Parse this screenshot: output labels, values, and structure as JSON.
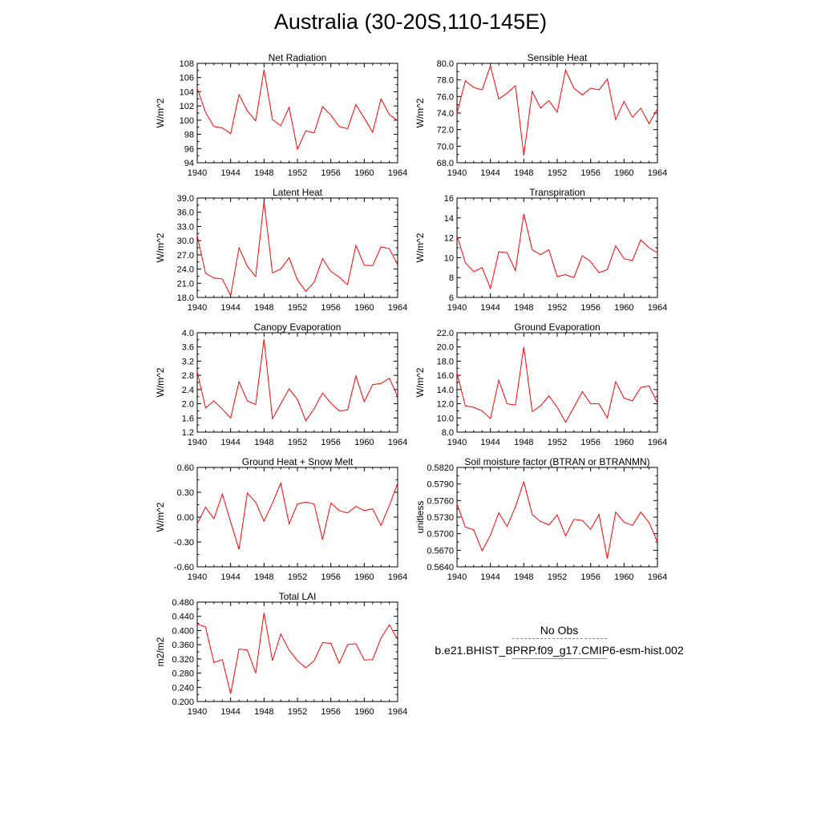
{
  "title": "Australia (30-20S,110-145E)",
  "legend": {
    "obs_label": "No Obs",
    "model_label": "b.e21.BHIST_BPRP.f09_g17.CMIP6-esm-hist.002",
    "obs_color": "#888888",
    "model_color": "#ff0000"
  },
  "chart_data": [
    {
      "type": "line",
      "title": "Net Radiation",
      "ylabel": "W/m^2",
      "xlim": [
        1940,
        1964
      ],
      "ylim": [
        94,
        108
      ],
      "xticks": [
        "1940",
        "1944",
        "1948",
        "1952",
        "1956",
        "1960",
        "1964"
      ],
      "yticks": [
        "94",
        "96",
        "98",
        "100",
        "102",
        "104",
        "106",
        "108"
      ],
      "grid": false,
      "color": "#ff0000",
      "x": [
        1940,
        1941,
        1942,
        1943,
        1944,
        1945,
        1946,
        1947,
        1948,
        1949,
        1950,
        1951,
        1952,
        1953,
        1954,
        1955,
        1956,
        1957,
        1958,
        1959,
        1960,
        1961,
        1962,
        1963,
        1964
      ],
      "y": [
        104.5,
        101.1,
        99.1,
        98.9,
        98.1,
        103.6,
        101.3,
        99.9,
        107.1,
        100.1,
        99.2,
        101.8,
        95.9,
        98.5,
        98.2,
        101.9,
        100.7,
        99.1,
        98.8,
        102.2,
        100.3,
        98.3,
        103.0,
        100.8,
        99.9
      ]
    },
    {
      "type": "line",
      "title": "Sensible Heat",
      "ylabel": "W/m^2",
      "xlim": [
        1940,
        1964
      ],
      "ylim": [
        68,
        80
      ],
      "xticks": [
        "1940",
        "1944",
        "1948",
        "1952",
        "1956",
        "1960",
        "1964"
      ],
      "yticks": [
        "68.0",
        "70.0",
        "72.0",
        "74.0",
        "76.0",
        "78.0",
        "80.0"
      ],
      "grid": false,
      "color": "#ff0000",
      "x": [
        1940,
        1941,
        1942,
        1943,
        1944,
        1945,
        1946,
        1947,
        1948,
        1949,
        1950,
        1951,
        1952,
        1953,
        1954,
        1955,
        1956,
        1957,
        1958,
        1959,
        1960,
        1961,
        1962,
        1963,
        1964
      ],
      "y": [
        74.0,
        77.9,
        77.1,
        76.8,
        79.7,
        75.7,
        76.4,
        77.3,
        68.9,
        76.6,
        74.6,
        75.5,
        74.1,
        79.2,
        77.0,
        76.2,
        77.0,
        76.8,
        78.1,
        73.2,
        75.4,
        73.5,
        74.6,
        72.7,
        74.5
      ]
    },
    {
      "type": "line",
      "title": "Latent Heat",
      "ylabel": "W/m^2",
      "xlim": [
        1940,
        1964
      ],
      "ylim": [
        18,
        39
      ],
      "xticks": [
        "1940",
        "1944",
        "1948",
        "1952",
        "1956",
        "1960",
        "1964"
      ],
      "yticks": [
        "18.0",
        "21.0",
        "24.0",
        "27.0",
        "30.0",
        "33.0",
        "36.0",
        "39.0"
      ],
      "grid": false,
      "color": "#ff0000",
      "x": [
        1940,
        1941,
        1942,
        1943,
        1944,
        1945,
        1946,
        1947,
        1948,
        1949,
        1950,
        1951,
        1952,
        1953,
        1954,
        1955,
        1956,
        1957,
        1958,
        1959,
        1960,
        1961,
        1962,
        1963,
        1964
      ],
      "y": [
        31.0,
        23.1,
        22.1,
        21.9,
        18.4,
        28.5,
        24.6,
        22.4,
        38.3,
        23.2,
        24.0,
        26.4,
        21.7,
        19.3,
        21.2,
        26.2,
        23.5,
        22.3,
        20.7,
        29.0,
        24.8,
        24.7,
        28.7,
        28.3,
        24.9
      ]
    },
    {
      "type": "line",
      "title": "Transpiration",
      "ylabel": "W/m^2",
      "xlim": [
        1940,
        1964
      ],
      "ylim": [
        6,
        16
      ],
      "xticks": [
        "1940",
        "1944",
        "1948",
        "1952",
        "1956",
        "1960",
        "1964"
      ],
      "yticks": [
        "6",
        "8",
        "10",
        "12",
        "14",
        "16"
      ],
      "grid": false,
      "color": "#ff0000",
      "x": [
        1940,
        1941,
        1942,
        1943,
        1944,
        1945,
        1946,
        1947,
        1948,
        1949,
        1950,
        1951,
        1952,
        1953,
        1954,
        1955,
        1956,
        1957,
        1958,
        1959,
        1960,
        1961,
        1962,
        1963,
        1964
      ],
      "y": [
        12.2,
        9.5,
        8.6,
        9.0,
        6.9,
        10.6,
        10.5,
        8.7,
        14.4,
        10.8,
        10.3,
        10.8,
        8.1,
        8.3,
        8.0,
        10.2,
        9.6,
        8.5,
        8.8,
        11.2,
        9.9,
        9.7,
        11.8,
        11.0,
        10.5
      ]
    },
    {
      "type": "line",
      "title": "Canopy Evaporation",
      "ylabel": "W/m^2",
      "xlim": [
        1940,
        1964
      ],
      "ylim": [
        1.2,
        4.0
      ],
      "xticks": [
        "1940",
        "1944",
        "1948",
        "1952",
        "1956",
        "1960",
        "1964"
      ],
      "yticks": [
        "1.2",
        "1.6",
        "2.0",
        "2.4",
        "2.8",
        "3.2",
        "3.6",
        "4.0"
      ],
      "grid": false,
      "color": "#ff0000",
      "x": [
        1940,
        1941,
        1942,
        1943,
        1944,
        1945,
        1946,
        1947,
        1948,
        1949,
        1950,
        1951,
        1952,
        1953,
        1954,
        1955,
        1956,
        1957,
        1958,
        1959,
        1960,
        1961,
        1962,
        1963,
        1964
      ],
      "y": [
        2.9,
        1.88,
        2.08,
        1.85,
        1.6,
        2.62,
        2.08,
        1.98,
        3.82,
        1.58,
        2.0,
        2.42,
        2.12,
        1.52,
        1.86,
        2.3,
        2.02,
        1.8,
        1.82,
        2.78,
        2.06,
        2.54,
        2.57,
        2.72,
        2.2
      ]
    },
    {
      "type": "line",
      "title": "Ground Evaporation",
      "ylabel": "W/m^2",
      "xlim": [
        1940,
        1964
      ],
      "ylim": [
        8,
        22
      ],
      "xticks": [
        "1940",
        "1944",
        "1948",
        "1952",
        "1956",
        "1960",
        "1964"
      ],
      "yticks": [
        "8.0",
        "10.0",
        "12.0",
        "14.0",
        "16.0",
        "18.0",
        "20.0",
        "22.0"
      ],
      "grid": false,
      "color": "#ff0000",
      "x": [
        1940,
        1941,
        1942,
        1943,
        1944,
        1945,
        1946,
        1947,
        1948,
        1949,
        1950,
        1951,
        1952,
        1953,
        1954,
        1955,
        1956,
        1957,
        1958,
        1959,
        1960,
        1961,
        1962,
        1963,
        1964
      ],
      "y": [
        16.3,
        11.7,
        11.5,
        11.0,
        9.9,
        15.3,
        12.0,
        11.8,
        20.0,
        10.9,
        11.7,
        13.1,
        11.5,
        9.4,
        11.5,
        13.7,
        12.0,
        12.0,
        10.0,
        15.1,
        12.8,
        12.4,
        14.3,
        14.5,
        12.1
      ]
    },
    {
      "type": "line",
      "title": "Ground Heat + Snow Melt",
      "ylabel": "W/m^2",
      "xlim": [
        1940,
        1964
      ],
      "ylim": [
        -0.6,
        0.6
      ],
      "xticks": [
        "1940",
        "1944",
        "1948",
        "1952",
        "1956",
        "1960",
        "1964"
      ],
      "yticks": [
        "-0.60",
        "-0.30",
        "0.00",
        "0.30",
        "0.60"
      ],
      "grid": false,
      "color": "#ff0000",
      "x": [
        1940,
        1941,
        1942,
        1943,
        1944,
        1945,
        1946,
        1947,
        1948,
        1949,
        1950,
        1951,
        1952,
        1953,
        1954,
        1955,
        1956,
        1957,
        1958,
        1959,
        1960,
        1961,
        1962,
        1963,
        1964
      ],
      "y": [
        -0.08,
        0.12,
        -0.02,
        0.28,
        -0.06,
        -0.39,
        0.29,
        0.18,
        -0.05,
        0.17,
        0.41,
        -0.08,
        0.16,
        0.18,
        0.16,
        -0.27,
        0.17,
        0.08,
        0.05,
        0.13,
        0.08,
        0.1,
        -0.1,
        0.14,
        0.41
      ]
    },
    {
      "type": "line",
      "title": "Soil moisture factor (BTRAN or BTRANMN)",
      "ylabel": "unitless",
      "xlim": [
        1940,
        1964
      ],
      "ylim": [
        0.564,
        0.582
      ],
      "xticks": [
        "1940",
        "1944",
        "1948",
        "1952",
        "1956",
        "1960",
        "1964"
      ],
      "yticks": [
        "0.5640",
        "0.5670",
        "0.5700",
        "0.5730",
        "0.5760",
        "0.5790",
        "0.5820"
      ],
      "grid": false,
      "color": "#ff0000",
      "x": [
        1940,
        1941,
        1942,
        1943,
        1944,
        1945,
        1946,
        1947,
        1948,
        1949,
        1950,
        1951,
        1952,
        1953,
        1954,
        1955,
        1956,
        1957,
        1958,
        1959,
        1960,
        1961,
        1962,
        1963,
        1964
      ],
      "y": [
        0.5754,
        0.5712,
        0.5707,
        0.5669,
        0.5697,
        0.5738,
        0.5713,
        0.5749,
        0.5794,
        0.5735,
        0.5722,
        0.5716,
        0.5734,
        0.5696,
        0.5726,
        0.5724,
        0.5708,
        0.5735,
        0.5655,
        0.5739,
        0.5721,
        0.5715,
        0.5739,
        0.572,
        0.5685
      ]
    },
    {
      "type": "line",
      "title": "Total LAI",
      "ylabel": "m2/m2",
      "xlim": [
        1940,
        1964
      ],
      "ylim": [
        0.2,
        0.48
      ],
      "xticks": [
        "1940",
        "1944",
        "1948",
        "1952",
        "1956",
        "1960",
        "1964"
      ],
      "yticks": [
        "0.200",
        "0.240",
        "0.280",
        "0.320",
        "0.360",
        "0.400",
        "0.440",
        "0.480"
      ],
      "grid": false,
      "color": "#ff0000",
      "x": [
        1940,
        1941,
        1942,
        1943,
        1944,
        1945,
        1946,
        1947,
        1948,
        1949,
        1950,
        1951,
        1952,
        1953,
        1954,
        1955,
        1956,
        1957,
        1958,
        1959,
        1960,
        1961,
        1962,
        1963,
        1964
      ],
      "y": [
        0.418,
        0.41,
        0.31,
        0.318,
        0.222,
        0.348,
        0.345,
        0.28,
        0.45,
        0.315,
        0.39,
        0.345,
        0.315,
        0.295,
        0.315,
        0.366,
        0.364,
        0.308,
        0.36,
        0.363,
        0.317,
        0.318,
        0.379,
        0.416,
        0.374
      ]
    }
  ]
}
